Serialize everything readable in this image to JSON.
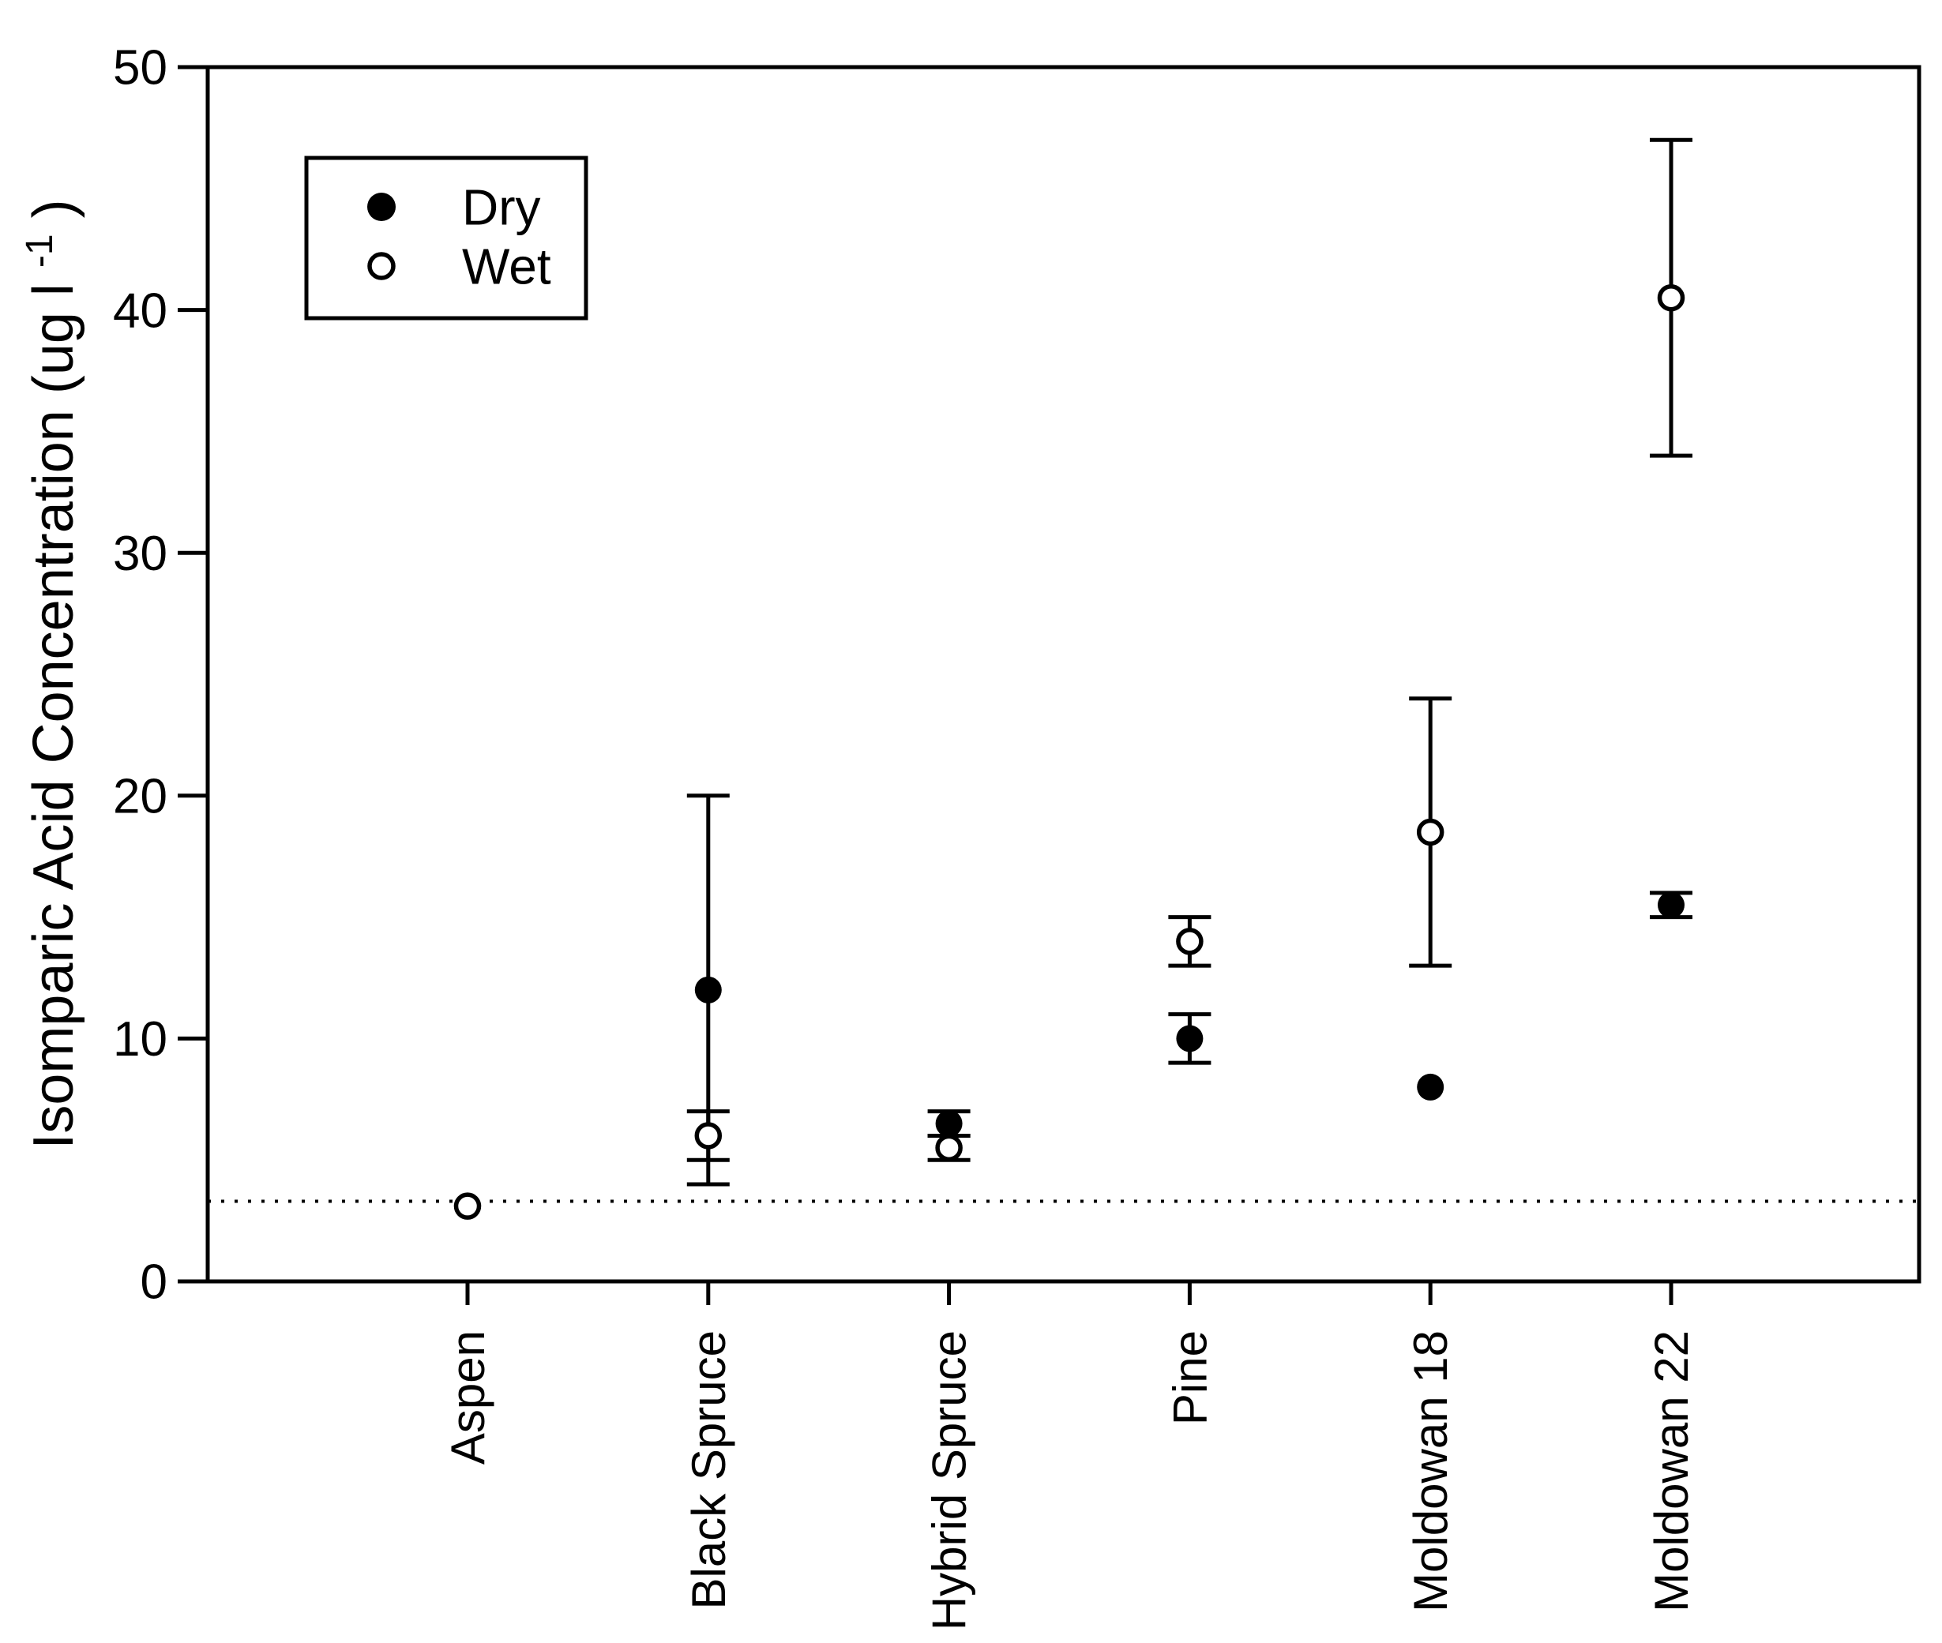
{
  "colors": {
    "foreground": "#000000",
    "background": "#ffffff"
  },
  "chart_data": {
    "type": "scatter",
    "title": "",
    "xlabel": "",
    "ylabel": {
      "main": "Isomparic Acid Concentration (ug l",
      "sup": "-1",
      "close": ")"
    },
    "ylim": [
      0,
      50
    ],
    "yticks": [
      0,
      10,
      20,
      30,
      40,
      50
    ],
    "grid": false,
    "frame": "box",
    "categories": [
      "Aspen",
      "Black Spruce",
      "Hybrid Spruce",
      "Pine",
      "Moldowan 18",
      "Moldowan 22"
    ],
    "series": [
      {
        "name": "Dry",
        "marker": "filled-circle",
        "color": "#000000",
        "values": [
          null,
          12,
          6.5,
          10,
          8,
          15.5
        ],
        "error": [
          null,
          8,
          0.5,
          1,
          0,
          0.5
        ]
      },
      {
        "name": "Wet",
        "marker": "open-circle",
        "color": "#000000",
        "values": [
          3.1,
          6,
          5.5,
          14,
          18.5,
          40.5
        ],
        "error": [
          0,
          1,
          0.5,
          1,
          5.5,
          6.5
        ]
      }
    ],
    "reference_line": {
      "value": 3.3,
      "style": "dotted"
    },
    "legend": {
      "position": "top-left",
      "items": [
        "Dry",
        "Wet"
      ]
    }
  }
}
